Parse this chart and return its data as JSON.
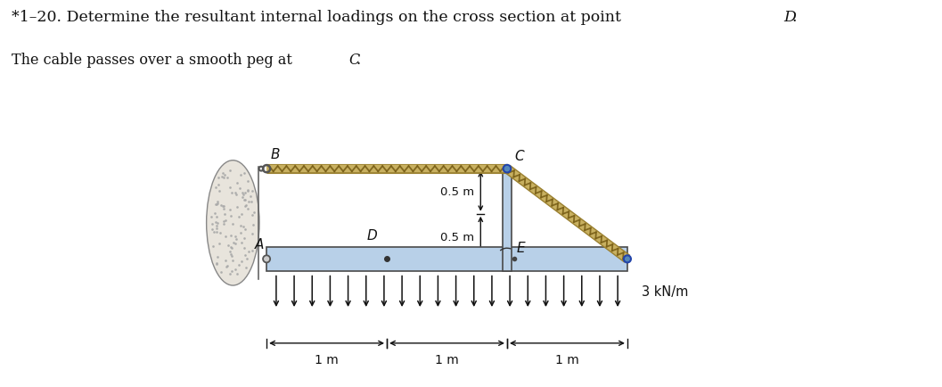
{
  "title_line1": "*1–20. Determine the resultant internal loadings on the cross section at point ",
  "title_D": "D",
  "title_line2": "The cable passes over a smooth peg at ",
  "title_C": "C",
  "bg_color": "#ffffff",
  "beam_color": "#b8d0e8",
  "beam_outline": "#4a4a4a",
  "cable_color": "#c8b060",
  "cable_dark": "#9a8030",
  "arrow_color": "#111111",
  "dim_color": "#111111",
  "text_color": "#111111",
  "figsize": [
    10.57,
    4.35
  ],
  "dpi": 100
}
